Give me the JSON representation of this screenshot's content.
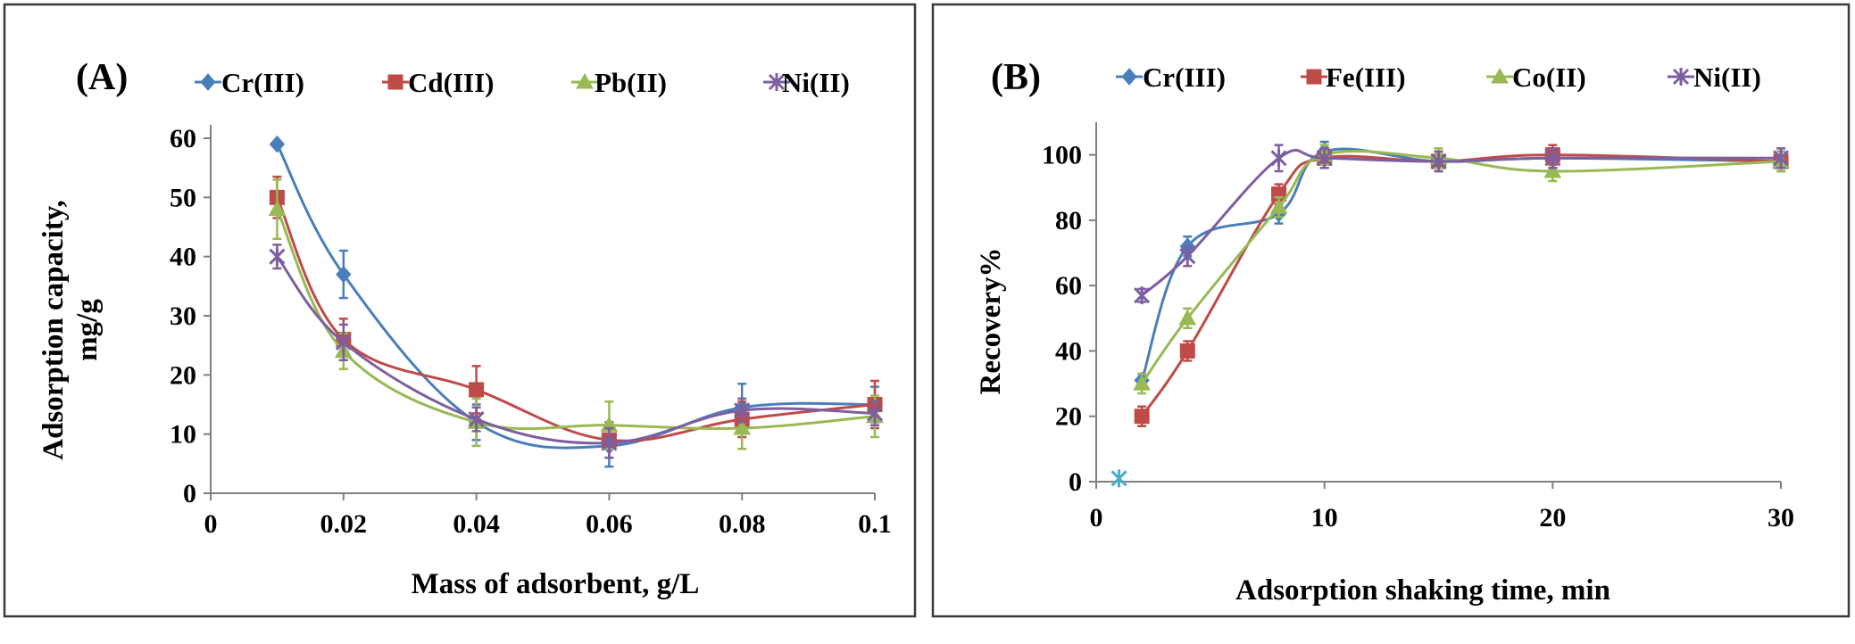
{
  "chart_data": [
    {
      "type": "line",
      "panel_label": "(A)",
      "xlabel": "Mass of adsorbent, g/L",
      "ylabel_lines": [
        "Adsorption capacity,",
        "mg/g"
      ],
      "xlim": [
        0,
        0.1
      ],
      "ylim": [
        0,
        60
      ],
      "xticks": [
        0,
        0.02,
        0.04,
        0.06,
        0.08,
        0.1
      ],
      "xtick_labels": [
        "0",
        "0.02",
        "0.04",
        "0.06",
        "0.08",
        "0.1"
      ],
      "yticks": [
        0,
        10,
        20,
        30,
        40,
        50,
        60
      ],
      "ytick_labels": [
        "0",
        "10",
        "20",
        "30",
        "40",
        "50",
        "60"
      ],
      "grid": false,
      "legend_position": "top",
      "series": [
        {
          "name": "Cr(III)",
          "color": "#4a7ebb",
          "marker": "diamond",
          "x": [
            0.01,
            0.02,
            0.04,
            0.06,
            0.08,
            0.1
          ],
          "y": [
            59,
            37,
            12,
            8,
            14.5,
            15
          ],
          "err": [
            0,
            4,
            3,
            3.5,
            4,
            3
          ]
        },
        {
          "name": "Cd(III)",
          "color": "#be4b48",
          "marker": "square",
          "x": [
            0.01,
            0.02,
            0.04,
            0.06,
            0.08,
            0.1
          ],
          "y": [
            50,
            26,
            17.5,
            9,
            12.5,
            15
          ],
          "err": [
            3.5,
            3.5,
            4,
            3,
            3,
            4
          ]
        },
        {
          "name": "Pb(II)",
          "color": "#98b954",
          "marker": "triangle",
          "x": [
            0.01,
            0.02,
            0.04,
            0.06,
            0.08,
            0.1
          ],
          "y": [
            48,
            24,
            12,
            11.5,
            11,
            13
          ],
          "err": [
            5,
            3,
            4,
            4,
            3.5,
            3.5
          ]
        },
        {
          "name": "Ni(II)",
          "color": "#7d5fa0",
          "marker": "star",
          "x": [
            0.01,
            0.02,
            0.04,
            0.06,
            0.08,
            0.1
          ],
          "y": [
            40,
            25.5,
            12.5,
            8.5,
            14,
            13.5
          ],
          "err": [
            2,
            3,
            2,
            2.5,
            2,
            2
          ]
        }
      ]
    },
    {
      "type": "line",
      "panel_label": "(B)",
      "xlabel": "Adsorption shaking time, min",
      "ylabel": "Recovery%",
      "xlim": [
        0,
        30
      ],
      "ylim": [
        0,
        110
      ],
      "xticks": [
        0,
        10,
        20,
        30
      ],
      "xtick_labels": [
        "0",
        "10",
        "20",
        "30"
      ],
      "yticks": [
        0,
        20,
        40,
        60,
        80,
        100
      ],
      "ytick_labels": [
        "0",
        "20",
        "40",
        "60",
        "80",
        "100"
      ],
      "grid": false,
      "legend_position": "top",
      "series": [
        {
          "name": "Cr(III)",
          "color": "#4a7ebb",
          "marker": "diamond",
          "x": [
            2,
            4,
            8,
            10,
            15,
            20,
            30
          ],
          "y": [
            31,
            72,
            82,
            101,
            98,
            99,
            98
          ],
          "err": [
            2,
            3,
            3,
            3,
            3,
            3,
            3
          ]
        },
        {
          "name": "Fe(III)",
          "color": "#be4b48",
          "marker": "square",
          "x": [
            2,
            4,
            8,
            10,
            15,
            20,
            30
          ],
          "y": [
            20,
            40,
            88,
            99,
            98,
            100,
            98
          ],
          "err": [
            3,
            3,
            3,
            3,
            3,
            3,
            3
          ]
        },
        {
          "name": "Co(II)",
          "color": "#98b954",
          "marker": "triangle",
          "x": [
            2,
            4,
            8,
            10,
            15,
            20,
            30
          ],
          "y": [
            30,
            50,
            84,
            100,
            99,
            95,
            98
          ],
          "err": [
            3,
            3,
            3,
            3,
            3,
            3,
            3
          ]
        },
        {
          "name": "Ni(II)",
          "color": "#7d5fa0",
          "marker": "star",
          "x": [
            2,
            4,
            8,
            10,
            15,
            20,
            30
          ],
          "y": [
            57,
            69,
            99,
            99,
            98,
            99,
            99
          ],
          "err": [
            2,
            3,
            4,
            3,
            3,
            3,
            3
          ]
        }
      ],
      "annotations": [
        {
          "marker": "star",
          "color": "#4bacc6",
          "x": 1,
          "y": 1
        }
      ]
    }
  ]
}
